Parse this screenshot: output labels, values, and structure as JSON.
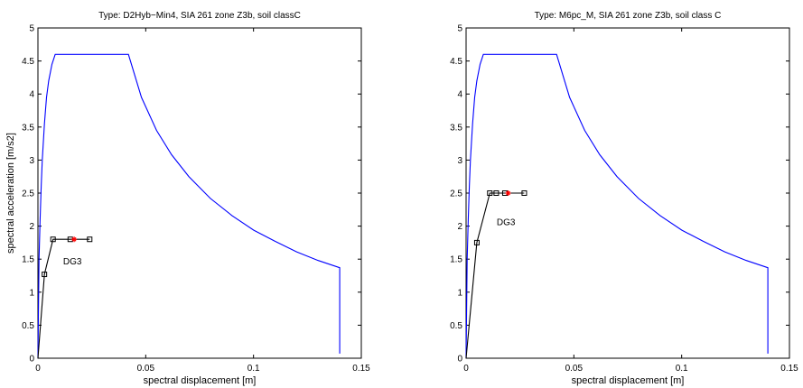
{
  "chart_data": [
    {
      "type": "line",
      "title": "Type: D2Hyb−Min4, SIA 261 zone Z3b, soil classC",
      "xlabel": "spectral displacement [m]",
      "ylabel": "spectral acceleration [m/s2]",
      "xlim": [
        0,
        0.15
      ],
      "ylim": [
        0,
        5
      ],
      "xticks": [
        0,
        0.05,
        0.1,
        0.15
      ],
      "xtick_labels": [
        "0",
        "0.05",
        "0.1",
        "0.15"
      ],
      "yticks": [
        0,
        0.5,
        1,
        1.5,
        2,
        2.5,
        3,
        3.5,
        4,
        4.5,
        5
      ],
      "ytick_labels": [
        "0",
        "0.5",
        "1",
        "1.5",
        "2",
        "2.5",
        "3",
        "3.5",
        "4",
        "4.5",
        "5"
      ],
      "grid": false,
      "series": [
        {
          "color": "#0000ff",
          "x": [
            0,
            0.0005,
            0.001,
            0.0015,
            0.002,
            0.003,
            0.004,
            0.005,
            0.0065,
            0.008,
            0.042,
            0.048,
            0.055,
            0.062,
            0.07,
            0.08,
            0.09,
            0.1,
            0.11,
            0.12,
            0.13,
            0.14,
            0.14
          ],
          "y": [
            0,
            1.5,
            2.1,
            2.6,
            3.0,
            3.55,
            3.95,
            4.2,
            4.45,
            4.6,
            4.6,
            3.95,
            3.45,
            3.08,
            2.75,
            2.42,
            2.16,
            1.94,
            1.77,
            1.61,
            1.48,
            1.37,
            0.07
          ]
        },
        {
          "color": "#000000",
          "x": [
            0,
            0.003,
            0.007,
            0.015,
            0.0168,
            0.024
          ],
          "y": [
            0,
            1.27,
            1.8,
            1.8,
            1.8,
            1.8
          ]
        }
      ],
      "markers": [
        {
          "x": 0.003,
          "y": 1.27,
          "shape": "square",
          "color": "#000000"
        },
        {
          "x": 0.007,
          "y": 1.8,
          "shape": "square",
          "color": "#000000"
        },
        {
          "x": 0.015,
          "y": 1.8,
          "shape": "square",
          "color": "#000000"
        },
        {
          "x": 0.024,
          "y": 1.8,
          "shape": "square",
          "color": "#000000"
        },
        {
          "x": 0.0168,
          "y": 1.8,
          "shape": "star",
          "color": "#ff0000"
        }
      ],
      "annotations": [
        {
          "text": "DG3",
          "x": 0.016,
          "y": 1.47
        }
      ]
    },
    {
      "type": "line",
      "title": "Type: M6pc_M, SIA 261 zone Z3b, soil class C",
      "xlabel": "spectral displacement [m]",
      "ylabel": "",
      "xlim": [
        0,
        0.15
      ],
      "ylim": [
        0,
        5
      ],
      "xticks": [
        0,
        0.05,
        0.1,
        0.15
      ],
      "xtick_labels": [
        "0",
        "0.05",
        "0.1",
        "0.15"
      ],
      "yticks": [
        0,
        0.5,
        1,
        1.5,
        2,
        2.5,
        3,
        3.5,
        4,
        4.5,
        5
      ],
      "ytick_labels": [
        "0",
        "0.5",
        "1",
        "1.5",
        "2",
        "2.5",
        "3",
        "3.5",
        "4",
        "4.5",
        "5"
      ],
      "grid": false,
      "series": [
        {
          "color": "#0000ff",
          "x": [
            0,
            0.0005,
            0.001,
            0.0015,
            0.002,
            0.003,
            0.004,
            0.005,
            0.0065,
            0.008,
            0.042,
            0.048,
            0.055,
            0.062,
            0.07,
            0.08,
            0.09,
            0.1,
            0.11,
            0.12,
            0.13,
            0.14,
            0.14
          ],
          "y": [
            0,
            1.5,
            2.1,
            2.6,
            3.0,
            3.55,
            3.95,
            4.2,
            4.45,
            4.6,
            4.6,
            3.95,
            3.45,
            3.08,
            2.75,
            2.42,
            2.16,
            1.94,
            1.77,
            1.61,
            1.48,
            1.37,
            0.07
          ]
        },
        {
          "color": "#000000",
          "x": [
            0,
            0.005,
            0.011,
            0.018,
            0.0195,
            0.027
          ],
          "y": [
            0,
            1.75,
            2.5,
            2.5,
            2.5,
            2.5
          ]
        }
      ],
      "markers": [
        {
          "x": 0.005,
          "y": 1.75,
          "shape": "square",
          "color": "#000000"
        },
        {
          "x": 0.011,
          "y": 2.5,
          "shape": "square",
          "color": "#000000"
        },
        {
          "x": 0.014,
          "y": 2.5,
          "shape": "square",
          "color": "#000000"
        },
        {
          "x": 0.018,
          "y": 2.5,
          "shape": "square",
          "color": "#000000"
        },
        {
          "x": 0.027,
          "y": 2.5,
          "shape": "square",
          "color": "#000000"
        },
        {
          "x": 0.0195,
          "y": 2.5,
          "shape": "star",
          "color": "#ff0000"
        }
      ],
      "annotations": [
        {
          "text": "DG3",
          "x": 0.0185,
          "y": 2.06
        }
      ]
    }
  ]
}
